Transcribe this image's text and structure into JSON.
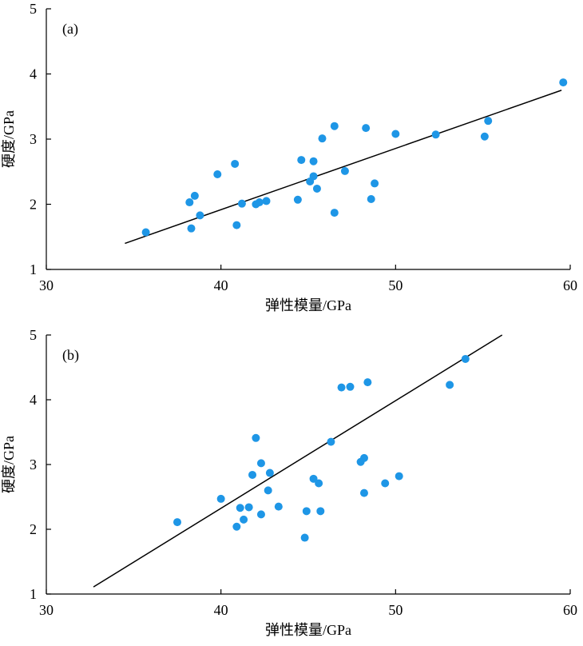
{
  "chart_data": [
    {
      "type": "scatter",
      "panel_label": "(a)",
      "xlabel": "弹性模量/GPa",
      "ylabel": "硬度/GPa",
      "xlim": [
        30,
        60
      ],
      "ylim": [
        1,
        5
      ],
      "xticks": [
        30,
        40,
        50,
        60
      ],
      "yticks": [
        1,
        2,
        3,
        4,
        5
      ],
      "points": [
        [
          35.7,
          1.57
        ],
        [
          38.2,
          2.03
        ],
        [
          38.3,
          1.63
        ],
        [
          38.5,
          2.13
        ],
        [
          38.8,
          1.83
        ],
        [
          39.8,
          2.46
        ],
        [
          40.8,
          2.62
        ],
        [
          40.9,
          1.68
        ],
        [
          41.2,
          2.01
        ],
        [
          42.0,
          2.0
        ],
        [
          42.2,
          2.03
        ],
        [
          42.6,
          2.05
        ],
        [
          44.4,
          2.07
        ],
        [
          44.6,
          2.68
        ],
        [
          45.1,
          2.35
        ],
        [
          45.3,
          2.43
        ],
        [
          45.3,
          2.66
        ],
        [
          45.5,
          2.24
        ],
        [
          45.8,
          3.01
        ],
        [
          46.5,
          3.2
        ],
        [
          46.5,
          1.87
        ],
        [
          47.1,
          2.51
        ],
        [
          48.3,
          3.17
        ],
        [
          48.6,
          2.08
        ],
        [
          48.8,
          2.32
        ],
        [
          50.0,
          3.08
        ],
        [
          52.3,
          3.07
        ],
        [
          55.1,
          3.04
        ],
        [
          55.3,
          3.28
        ],
        [
          59.6,
          3.87
        ]
      ],
      "fit_line": [
        [
          34.5,
          1.4
        ],
        [
          59.5,
          3.75
        ]
      ]
    },
    {
      "type": "scatter",
      "panel_label": "(b)",
      "xlabel": "弹性模量/GPa",
      "ylabel": "硬度/GPa",
      "xlim": [
        30,
        60
      ],
      "ylim": [
        1,
        5
      ],
      "xticks": [
        30,
        40,
        50,
        60
      ],
      "yticks": [
        1,
        2,
        3,
        4,
        5
      ],
      "points": [
        [
          37.5,
          2.11
        ],
        [
          40.0,
          2.47
        ],
        [
          40.9,
          2.04
        ],
        [
          41.1,
          2.33
        ],
        [
          41.3,
          2.15
        ],
        [
          41.6,
          2.34
        ],
        [
          41.8,
          2.84
        ],
        [
          42.0,
          3.41
        ],
        [
          42.3,
          3.02
        ],
        [
          42.3,
          2.23
        ],
        [
          42.7,
          2.6
        ],
        [
          42.8,
          2.87
        ],
        [
          43.3,
          2.35
        ],
        [
          44.8,
          1.87
        ],
        [
          44.9,
          2.28
        ],
        [
          45.3,
          2.78
        ],
        [
          45.6,
          2.71
        ],
        [
          45.7,
          2.28
        ],
        [
          46.3,
          3.35
        ],
        [
          46.9,
          4.19
        ],
        [
          47.4,
          4.2
        ],
        [
          48.0,
          3.04
        ],
        [
          48.2,
          3.1
        ],
        [
          48.2,
          2.56
        ],
        [
          48.4,
          4.27
        ],
        [
          49.4,
          2.71
        ],
        [
          50.2,
          2.82
        ],
        [
          53.1,
          4.23
        ],
        [
          54.0,
          4.63
        ]
      ],
      "fit_line": [
        [
          32.7,
          1.11
        ],
        [
          56.1,
          5.0
        ]
      ]
    }
  ]
}
